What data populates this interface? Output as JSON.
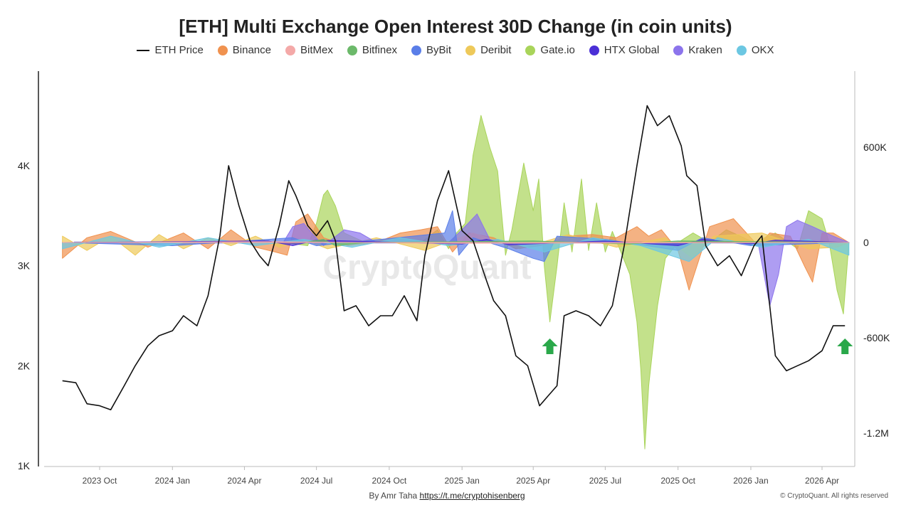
{
  "page": {
    "title": "[ETH] Multi Exchange Open Interest 30D Change (in coin units)"
  },
  "legend": [
    {
      "name": "ETH Price",
      "color": "#111111",
      "kind": "line"
    },
    {
      "name": "Binance",
      "color": "#f0924f",
      "kind": "dot"
    },
    {
      "name": "BitMex",
      "color": "#f4a9a8",
      "kind": "dot"
    },
    {
      "name": "Bitfinex",
      "color": "#6cb96a",
      "kind": "dot"
    },
    {
      "name": "ByBit",
      "color": "#5a7ee8",
      "kind": "dot"
    },
    {
      "name": "Deribit",
      "color": "#eec95a",
      "kind": "dot"
    },
    {
      "name": "Gate.io",
      "color": "#a9d45a",
      "kind": "dot"
    },
    {
      "name": "HTX Global",
      "color": "#4a2fd6",
      "kind": "dot"
    },
    {
      "name": "Kraken",
      "color": "#8c74ec",
      "kind": "dot"
    },
    {
      "name": "OKX",
      "color": "#6cc7e2",
      "kind": "dot"
    }
  ],
  "watermark": "CryptoQuant",
  "footer": {
    "by": "By Amr Taha",
    "link": "https://t.me/cryptohisenberg",
    "copyright": "© CryptoQuant. All rights reserved"
  },
  "chart_data": {
    "type": "line",
    "title": "[ETH] Multi Exchange Open Interest 30D Change (in coin units)",
    "x_ticks": [
      "2023 Oct",
      "2024 Jan",
      "2024 Apr",
      "2024 Jul",
      "2024 Oct",
      "2025 Jan",
      "2025 Apr",
      "2025 Jul",
      "2025 Oct",
      "2026 Jan",
      "2026 Apr"
    ],
    "x_range": [
      "2023-07-15",
      "2026-05-10"
    ],
    "y_left": {
      "ticks": [
        "1K",
        "2K",
        "3K",
        "4K"
      ],
      "values": [
        1000,
        2000,
        3000,
        4000
      ],
      "range": [
        1000,
        4800
      ]
    },
    "y_right": {
      "ticks": [
        "600K",
        "0",
        "-600K",
        "-1.2M"
      ],
      "values": [
        600000,
        0,
        -600000,
        -1200000
      ],
      "range": [
        -1350000,
        1060000
      ]
    },
    "price": {
      "name": "ETH Price",
      "x": [
        "2023-08-15",
        "2023-09-01",
        "2023-09-15",
        "2023-10-01",
        "2023-10-15",
        "2023-11-01",
        "2023-11-15",
        "2023-12-01",
        "2023-12-15",
        "2024-01-01",
        "2024-01-15",
        "2024-02-01",
        "2024-02-15",
        "2024-03-01",
        "2024-03-12",
        "2024-03-25",
        "2024-04-08",
        "2024-04-20",
        "2024-05-01",
        "2024-05-15",
        "2024-05-27",
        "2024-06-05",
        "2024-06-20",
        "2024-07-01",
        "2024-07-15",
        "2024-07-25",
        "2024-08-05",
        "2024-08-20",
        "2024-09-05",
        "2024-09-20",
        "2024-10-05",
        "2024-10-20",
        "2024-11-05",
        "2024-11-15",
        "2024-12-01",
        "2024-12-15",
        "2025-01-01",
        "2025-01-15",
        "2025-02-01",
        "2025-02-10",
        "2025-02-25",
        "2025-03-10",
        "2025-03-25",
        "2025-04-09",
        "2025-04-20",
        "2025-05-01",
        "2025-05-10",
        "2025-05-25",
        "2025-06-10",
        "2025-06-25",
        "2025-07-10",
        "2025-07-25",
        "2025-08-10",
        "2025-08-23",
        "2025-09-05",
        "2025-09-20",
        "2025-10-05",
        "2025-10-12",
        "2025-10-25",
        "2025-11-05",
        "2025-11-20",
        "2025-12-05",
        "2025-12-20",
        "2026-01-05",
        "2026-01-15",
        "2026-02-01",
        "2026-02-15",
        "2026-03-01",
        "2026-03-15",
        "2026-04-01",
        "2026-04-15",
        "2026-04-30"
      ],
      "y": [
        1850,
        1830,
        1620,
        1600,
        1560,
        1800,
        2000,
        2200,
        2300,
        2350,
        2500,
        2400,
        2700,
        3300,
        4000,
        3600,
        3250,
        3100,
        3000,
        3400,
        3850,
        3700,
        3400,
        3300,
        3450,
        3250,
        2550,
        2600,
        2400,
        2500,
        2500,
        2700,
        2450,
        3100,
        3650,
        3950,
        3350,
        3250,
        2850,
        2650,
        2500,
        2100,
        2000,
        1600,
        1700,
        1800,
        2500,
        2550,
        2500,
        2400,
        2600,
        3200,
        4000,
        4600,
        4400,
        4500,
        4200,
        3900,
        3800,
        3200,
        3000,
        3100,
        2900,
        3200,
        3300,
        2100,
        1950,
        2000,
        2050,
        2150,
        2400,
        2400
      ]
    },
    "series": [
      {
        "name": "Gate.io",
        "color": "#a9d45a",
        "x": [
          "2023-08-15",
          "2024-05-20",
          "2024-06-20",
          "2024-07-01",
          "2024-07-10",
          "2024-07-15",
          "2024-07-25",
          "2024-08-05",
          "2024-09-01",
          "2024-10-10",
          "2024-11-10",
          "2024-12-01",
          "2024-12-15",
          "2024-12-25",
          "2025-01-05",
          "2025-01-15",
          "2025-01-25",
          "2025-02-05",
          "2025-02-15",
          "2025-02-25",
          "2025-03-05",
          "2025-03-20",
          "2025-04-01",
          "2025-04-08",
          "2025-04-15",
          "2025-04-22",
          "2025-05-01",
          "2025-05-10",
          "2025-05-20",
          "2025-06-01",
          "2025-06-10",
          "2025-06-20",
          "2025-07-01",
          "2025-07-10",
          "2025-07-20",
          "2025-08-01",
          "2025-08-10",
          "2025-08-15",
          "2025-08-20",
          "2025-08-25",
          "2025-09-05",
          "2025-09-15",
          "2025-10-01",
          "2025-10-20",
          "2025-11-10",
          "2025-12-01",
          "2026-01-05",
          "2026-02-01",
          "2026-03-01",
          "2026-03-15",
          "2026-04-01",
          "2026-04-10",
          "2026-04-20",
          "2026-04-28",
          "2026-05-05"
        ],
        "y": [
          0,
          0,
          -20000,
          120000,
          300000,
          330000,
          230000,
          60000,
          0,
          0,
          0,
          80000,
          -40000,
          60000,
          120000,
          550000,
          800000,
          600000,
          450000,
          -80000,
          80000,
          500000,
          200000,
          400000,
          -150000,
          -500000,
          -150000,
          250000,
          -60000,
          400000,
          -50000,
          250000,
          -60000,
          70000,
          -50000,
          -200000,
          -500000,
          -800000,
          -1300000,
          -900000,
          -400000,
          -100000,
          0,
          60000,
          0,
          80000,
          0,
          60000,
          -40000,
          200000,
          150000,
          0,
          -300000,
          -450000,
          0
        ]
      },
      {
        "name": "Binance",
        "color": "#f0924f",
        "x": [
          "2023-08-15",
          "2023-09-15",
          "2023-10-15",
          "2023-12-01",
          "2024-01-15",
          "2024-02-15",
          "2024-03-15",
          "2024-04-15",
          "2024-05-10",
          "2024-05-25",
          "2024-06-05",
          "2024-06-20",
          "2024-07-10",
          "2024-08-10",
          "2024-09-15",
          "2024-10-15",
          "2024-11-10",
          "2024-12-01",
          "2024-12-20",
          "2025-01-10",
          "2025-02-10",
          "2025-03-10",
          "2025-04-10",
          "2025-05-15",
          "2025-06-15",
          "2025-07-15",
          "2025-08-10",
          "2025-08-25",
          "2025-09-10",
          "2025-10-01",
          "2025-10-15",
          "2025-11-10",
          "2025-12-10",
          "2026-01-10",
          "2026-01-25",
          "2026-02-20",
          "2026-03-10",
          "2026-03-20",
          "2026-04-01",
          "2026-04-15",
          "2026-05-05"
        ],
        "y": [
          -100000,
          30000,
          70000,
          -30000,
          60000,
          -40000,
          80000,
          -30000,
          -60000,
          -80000,
          130000,
          180000,
          30000,
          -20000,
          0,
          60000,
          80000,
          100000,
          -60000,
          60000,
          30000,
          -40000,
          -20000,
          40000,
          50000,
          30000,
          100000,
          40000,
          80000,
          -50000,
          -300000,
          100000,
          150000,
          -20000,
          60000,
          40000,
          -150000,
          -250000,
          60000,
          60000,
          0
        ]
      },
      {
        "name": "Deribit",
        "color": "#eec95a",
        "x": [
          "2023-08-15",
          "2023-09-15",
          "2023-10-15",
          "2023-11-15",
          "2023-12-15",
          "2024-01-15",
          "2024-02-15",
          "2024-03-15",
          "2024-04-15",
          "2024-05-15",
          "2024-06-15",
          "2024-07-15",
          "2024-09-15",
          "2024-11-15",
          "2025-01-15",
          "2025-03-15",
          "2025-05-15",
          "2025-07-15",
          "2025-09-15",
          "2025-10-20",
          "2025-11-15",
          "2026-01-15",
          "2026-03-15",
          "2026-04-20",
          "2026-05-05"
        ],
        "y": [
          40000,
          -50000,
          40000,
          -80000,
          50000,
          -40000,
          30000,
          -20000,
          40000,
          -30000,
          20000,
          -40000,
          30000,
          -50000,
          60000,
          -40000,
          50000,
          -30000,
          30000,
          -100000,
          40000,
          60000,
          -40000,
          -30000,
          0
        ]
      },
      {
        "name": "HTX Global",
        "color": "#4a2fd6",
        "x": [
          "2023-08-15",
          "2024-05-01",
          "2024-06-01",
          "2024-07-01",
          "2025-01-01",
          "2025-02-01",
          "2025-03-01",
          "2025-07-01",
          "2025-10-01",
          "2025-11-01",
          "2026-01-01",
          "2026-02-01",
          "2026-05-05"
        ],
        "y": [
          0,
          10000,
          -20000,
          15000,
          -10000,
          20000,
          -15000,
          10000,
          -20000,
          20000,
          -10000,
          15000,
          0
        ]
      },
      {
        "name": "Kraken",
        "color": "#8c74ec",
        "x": [
          "2023-08-15",
          "2024-05-20",
          "2024-06-01",
          "2024-06-15",
          "2024-06-25",
          "2024-07-10",
          "2024-08-05",
          "2024-08-25",
          "2024-09-15",
          "2024-12-15",
          "2025-01-01",
          "2025-01-20",
          "2025-02-05",
          "2025-02-25",
          "2025-07-01",
          "2025-10-01",
          "2026-01-10",
          "2026-01-25",
          "2026-02-05",
          "2026-02-15",
          "2026-03-01",
          "2026-03-20",
          "2026-04-15",
          "2026-05-05"
        ],
        "y": [
          0,
          0,
          100000,
          120000,
          60000,
          -20000,
          80000,
          60000,
          0,
          0,
          80000,
          180000,
          20000,
          0,
          0,
          0,
          0,
          -400000,
          -200000,
          100000,
          140000,
          100000,
          40000,
          0
        ]
      },
      {
        "name": "ByBit",
        "color": "#5a7ee8",
        "x": [
          "2023-08-15",
          "2024-01-01",
          "2024-06-01",
          "2024-07-01",
          "2024-12-10",
          "2024-12-20",
          "2024-12-28",
          "2025-01-15",
          "2025-03-01",
          "2025-04-01",
          "2025-04-15",
          "2025-05-01",
          "2025-07-01",
          "2025-10-01",
          "2025-11-01",
          "2026-01-01",
          "2026-05-05"
        ],
        "y": [
          0,
          -20000,
          30000,
          -20000,
          60000,
          200000,
          -80000,
          30000,
          -40000,
          -100000,
          -120000,
          40000,
          20000,
          -50000,
          30000,
          -20000,
          0
        ]
      },
      {
        "name": "OKX",
        "color": "#6cc7e2",
        "x": [
          "2023-08-15",
          "2023-10-15",
          "2023-12-15",
          "2024-02-15",
          "2024-04-15",
          "2024-06-15",
          "2024-08-15",
          "2024-10-15",
          "2024-12-15",
          "2025-02-15",
          "2025-04-15",
          "2025-06-15",
          "2025-08-15",
          "2025-10-15",
          "2025-11-20",
          "2026-01-15",
          "2026-03-15",
          "2026-05-05"
        ],
        "y": [
          -40000,
          40000,
          -30000,
          30000,
          -20000,
          20000,
          -30000,
          30000,
          -20000,
          20000,
          -60000,
          30000,
          -20000,
          -120000,
          30000,
          -30000,
          20000,
          -80000
        ]
      },
      {
        "name": "Bitfinex",
        "color": "#6cb96a",
        "x": [
          "2023-08-15",
          "2024-06-15",
          "2024-07-10",
          "2024-07-25",
          "2024-09-01",
          "2025-04-01",
          "2025-08-01",
          "2025-10-01",
          "2026-05-05"
        ],
        "y": [
          0,
          0,
          20000,
          -20000,
          0,
          10000,
          -10000,
          10000,
          0
        ]
      },
      {
        "name": "BitMex",
        "color": "#f4a9a8",
        "x": [
          "2023-08-15",
          "2024-05-01",
          "2025-01-01",
          "2026-05-05"
        ],
        "y": [
          0,
          5000,
          -5000,
          0
        ]
      }
    ],
    "annotations": [
      {
        "type": "arrow-up",
        "color": "#2aa84a",
        "x": "2025-04-22",
        "y": 2150
      },
      {
        "type": "arrow-up",
        "color": "#2aa84a",
        "x": "2026-04-30",
        "y": 2150
      }
    ]
  }
}
